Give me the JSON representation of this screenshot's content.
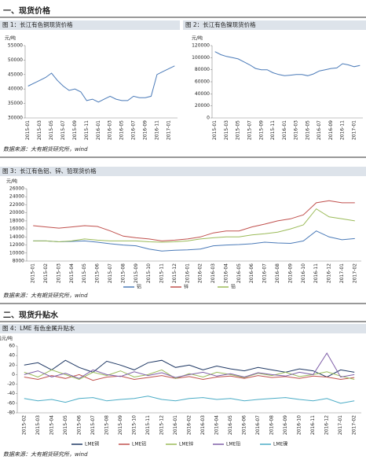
{
  "document": {
    "heading1": "一、现货价格",
    "source1": "数据来源：大有期货研究所，wind",
    "source2": "数据来源：大有期货研究所，wind",
    "heading2": "二、现货升贴水",
    "source3": "数据来源：大有期货研究所，wind"
  },
  "chart_data": [
    {
      "type": "line",
      "title": "图 1：长江有色铜现货价格",
      "y_label": "元/吨",
      "color": "#4a7ab8",
      "categories": [
        "2015-01",
        null,
        "2015-03",
        null,
        "2015-05",
        null,
        "2015-07",
        null,
        "2015-09",
        null,
        "2015-11",
        null,
        "2016-01",
        null,
        "2016-03",
        null,
        "2016-05",
        null,
        "2016-07",
        null,
        "2016-09",
        null,
        "2016-11",
        null,
        "2017-01",
        null
      ],
      "values": [
        41000,
        42000,
        43000,
        44000,
        45500,
        43000,
        41000,
        39500,
        40000,
        39000,
        36000,
        36500,
        35500,
        36500,
        37500,
        36500,
        36000,
        36000,
        37500,
        37000,
        37000,
        37500,
        45000,
        46000,
        47000,
        48000
      ],
      "ylim": [
        30000,
        55000
      ],
      "yticks": [
        30000,
        35000,
        40000,
        45000,
        50000,
        55000
      ]
    },
    {
      "type": "line",
      "title": "图 2：长江有色镍现货价格",
      "y_label": "元/吨",
      "color": "#4a7ab8",
      "categories": [
        "2015-01",
        null,
        "2015-03",
        null,
        "2015-05",
        null,
        "2015-07",
        null,
        "2015-09",
        null,
        "2015-11",
        null,
        "2016-01",
        null,
        "2016-03",
        null,
        "2016-05",
        null,
        "2016-07",
        null,
        "2016-09",
        null,
        "2016-11",
        null,
        "2017-01",
        null
      ],
      "values": [
        110000,
        105000,
        102000,
        100000,
        98000,
        93000,
        88000,
        82000,
        80000,
        80000,
        75000,
        72000,
        70000,
        71000,
        72000,
        72000,
        70000,
        73000,
        78000,
        80000,
        82000,
        83000,
        90000,
        88000,
        85000,
        87000
      ],
      "ylim": [
        0,
        120000
      ],
      "yticks": [
        0,
        20000,
        40000,
        60000,
        80000,
        100000,
        120000
      ]
    },
    {
      "type": "line",
      "title": "图 3：长江有色铝、锌、铅现货价格",
      "y_label": "元/吨",
      "categories": [
        "2015-01",
        "2015-02",
        "2015-03",
        "2015-04",
        "2015-05",
        "2015-06",
        "2015-07",
        "2015-08",
        "2015-09",
        "2015-10",
        "2015-11",
        "2015-12",
        "2016-01",
        "2016-02",
        "2016-03",
        "2016-04",
        "2016-05",
        "2016-06",
        "2016-07",
        "2016-08",
        "2016-09",
        "2016-10",
        "2016-11",
        "2016-12",
        "2017-01",
        "2017-02"
      ],
      "series": [
        {
          "name": "铝",
          "color": "#4a7ab8",
          "values": [
            13000,
            13000,
            12800,
            12900,
            13000,
            12700,
            12300,
            12000,
            11800,
            11000,
            10500,
            10700,
            10800,
            11000,
            11800,
            12000,
            12100,
            12300,
            12700,
            12500,
            12400,
            13000,
            15500,
            14000,
            13300,
            13600
          ]
        },
        {
          "name": "锌",
          "color": "#c0504d",
          "values": [
            16800,
            16500,
            16200,
            16500,
            16800,
            16600,
            15500,
            14200,
            13800,
            13500,
            13000,
            13200,
            13500,
            14000,
            15000,
            15500,
            15500,
            16500,
            17200,
            18000,
            18500,
            19500,
            22500,
            23000,
            22500,
            22500
          ]
        },
        {
          "name": "铅",
          "color": "#9bbb59",
          "values": [
            13000,
            13000,
            12800,
            13000,
            13500,
            13200,
            13000,
            13000,
            13000,
            12800,
            12700,
            12800,
            13000,
            13500,
            13800,
            14000,
            14000,
            14500,
            14800,
            15200,
            16000,
            17000,
            21000,
            19000,
            18500,
            18000
          ]
        }
      ],
      "ylim": [
        8000,
        26000
      ],
      "yticks": [
        8000,
        10000,
        12000,
        14000,
        16000,
        18000,
        20000,
        22000,
        24000,
        26000
      ],
      "legend": "bottom"
    },
    {
      "type": "line",
      "title": "图 4：LME 有色金属升贴水",
      "y_label": "美元/吨",
      "categories": [
        "2015-02",
        "2015-03",
        "2015-04",
        "2015-05",
        "2015-06",
        "2015-07",
        "2015-08",
        "2015-09",
        "2015-10",
        "2015-11",
        "2015-12",
        "2016-01",
        "2016-02",
        "2016-03",
        "2016-04",
        "2016-05",
        "2016-06",
        "2016-07",
        "2016-08",
        "2016-09",
        "2016-10",
        "2016-11",
        "2016-12",
        "2017-01",
        "2017-02"
      ],
      "series": [
        {
          "name": "LME铜",
          "color": "#1f3864",
          "values": [
            20,
            25,
            10,
            30,
            15,
            5,
            28,
            20,
            10,
            25,
            30,
            15,
            20,
            10,
            18,
            12,
            8,
            15,
            10,
            5,
            12,
            8,
            -5,
            10,
            5
          ]
        },
        {
          "name": "LME铝",
          "color": "#c0504d",
          "values": [
            -5,
            -10,
            -2,
            -8,
            0,
            -12,
            -5,
            -3,
            -10,
            -6,
            -2,
            -8,
            -4,
            -10,
            -5,
            -3,
            -8,
            -2,
            -6,
            -4,
            -8,
            -3,
            -5,
            -10,
            -6
          ]
        },
        {
          "name": "LME锌",
          "color": "#9bbb59",
          "values": [
            5,
            -5,
            10,
            0,
            -10,
            5,
            -2,
            8,
            -5,
            0,
            10,
            -8,
            2,
            -5,
            5,
            0,
            -6,
            3,
            -2,
            5,
            -4,
            0,
            6,
            -3,
            -10
          ]
        },
        {
          "name": "LME铅",
          "color": "#7f5fa8",
          "values": [
            0,
            8,
            -5,
            3,
            -8,
            10,
            0,
            -4,
            6,
            -2,
            4,
            -6,
            0,
            5,
            -3,
            2,
            -5,
            4,
            0,
            -3,
            5,
            0,
            45,
            -5,
            0
          ]
        },
        {
          "name": "LME镍",
          "color": "#4bacc6",
          "values": [
            -50,
            -55,
            -52,
            -58,
            -50,
            -48,
            -55,
            -52,
            -50,
            -45,
            -52,
            -55,
            -50,
            -48,
            -52,
            -50,
            -55,
            -52,
            -50,
            -48,
            -52,
            -55,
            -50,
            -60,
            -55
          ]
        }
      ],
      "ylim": [
        -80,
        60
      ],
      "yticks": [
        -80,
        -60,
        -40,
        -20,
        0,
        20,
        40,
        60
      ],
      "legend": "bottom"
    }
  ]
}
